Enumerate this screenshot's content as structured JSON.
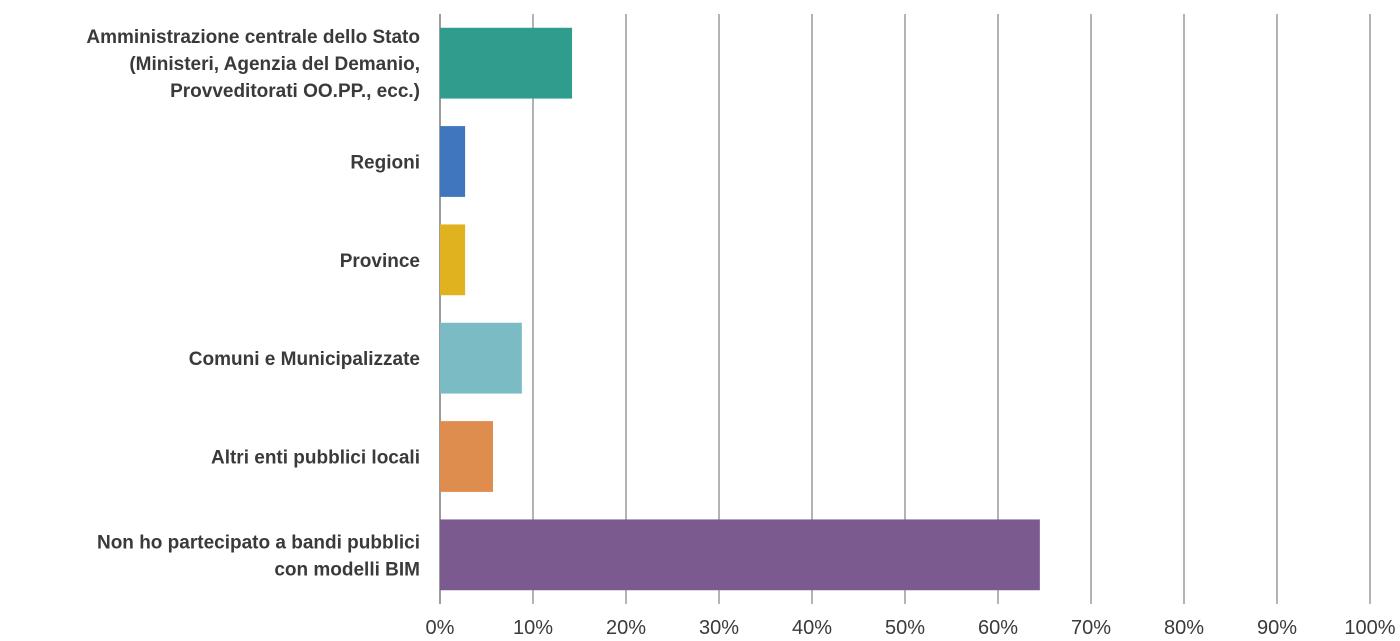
{
  "chart_data": {
    "type": "bar",
    "orientation": "horizontal",
    "title": "",
    "xlabel": "",
    "ylabel": "",
    "xlim": [
      0,
      100
    ],
    "x_ticks": [
      "0%",
      "10%",
      "20%",
      "30%",
      "40%",
      "50%",
      "60%",
      "70%",
      "80%",
      "90%",
      "100%"
    ],
    "grid": "vertical",
    "legend": "none",
    "categories": [
      [
        "Amministrazione centrale dello Stato",
        "(Ministeri, Agenzia del Demanio,",
        "Provveditorati OO.PP., ecc.)"
      ],
      [
        "Regioni"
      ],
      [
        "Province"
      ],
      [
        "Comuni e Municipalizzate"
      ],
      [
        "Altri enti pubblici locali"
      ],
      [
        "Non ho partecipato a bandi pubblici",
        "con modelli BIM"
      ]
    ],
    "values": [
      14.2,
      2.7,
      2.7,
      8.8,
      5.7,
      64.5
    ],
    "colors": [
      "#2f9c8e",
      "#3f76bd",
      "#e0b21f",
      "#7bbcc4",
      "#df8d4e",
      "#7a5a8f"
    ]
  }
}
